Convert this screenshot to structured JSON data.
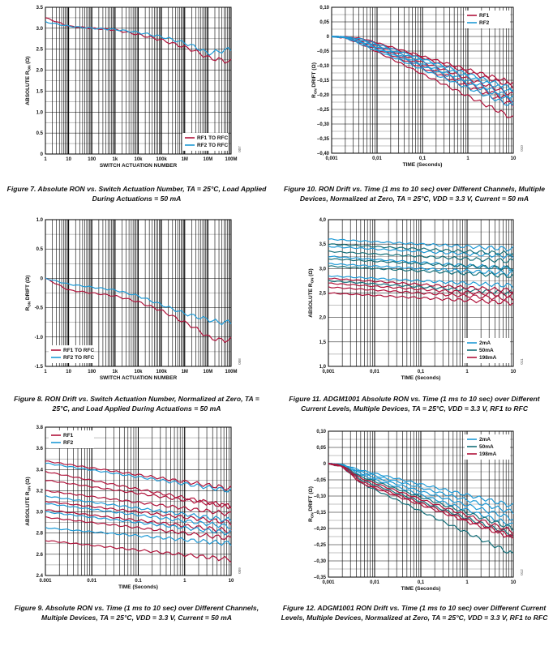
{
  "colors": {
    "red": "#b0123a",
    "blue": "#1e9ad6",
    "teal": "#14707a",
    "grid": "#000000"
  },
  "chart_data": [
    {
      "id": "fig7",
      "type": "line",
      "xscale": "log",
      "x_from": 1,
      "x_to": 100000000,
      "xticks": [
        "1",
        "10",
        "100",
        "1k",
        "10k",
        "100k",
        "1M",
        "10M",
        "100M"
      ],
      "yticks": [
        "0",
        "0.5",
        "1.0",
        "1.5",
        "2.0",
        "2.5",
        "3.0",
        "3.5"
      ],
      "ylim": [
        0,
        3.5
      ],
      "yaxis_label": "ABSOLUTE RON (Ω)",
      "xaxis_label": "SWITCH ACTUATION NUMBER",
      "figure_number": "007",
      "legend_position": "bottom-right",
      "series": [
        {
          "name": "RF1 TO RFC",
          "color": "red",
          "x": [
            1,
            10,
            100,
            1000,
            10000,
            100000,
            1000000,
            3000000,
            10000000,
            30000000,
            100000000
          ],
          "y": [
            3.25,
            3.05,
            3.0,
            2.96,
            2.85,
            2.72,
            2.55,
            2.45,
            2.3,
            2.25,
            2.2
          ]
        },
        {
          "name": "RF2 TO RFC",
          "color": "blue",
          "x": [
            1,
            10,
            100,
            1000,
            10000,
            100000,
            1000000,
            3000000,
            10000000,
            30000000,
            100000000
          ],
          "y": [
            3.15,
            3.05,
            3.0,
            2.97,
            2.9,
            2.8,
            2.65,
            2.55,
            2.4,
            2.45,
            2.5
          ]
        }
      ]
    },
    {
      "id": "fig8",
      "type": "line",
      "xscale": "log",
      "x_from": 1,
      "x_to": 100000000,
      "xticks": [
        "1",
        "10",
        "100",
        "1k",
        "10k",
        "100k",
        "1M",
        "10M",
        "100M"
      ],
      "yticks": [
        "-1.5",
        "-1.0",
        "-0.5",
        "0",
        "0.5",
        "1.0"
      ],
      "ylim": [
        -1.5,
        1.0
      ],
      "yaxis_label": "RON DRIFT (Ω)",
      "xaxis_label": "SWITCH ACTUATION NUMBER",
      "figure_number": "008",
      "legend_position": "bottom-left",
      "series": [
        {
          "name": "RF1 TO RFC",
          "color": "red",
          "x": [
            1,
            10,
            100,
            1000,
            10000,
            100000,
            1000000,
            3000000,
            10000000,
            30000000,
            100000000
          ],
          "y": [
            0,
            -0.2,
            -0.25,
            -0.3,
            -0.4,
            -0.55,
            -0.75,
            -0.85,
            -1.0,
            -1.05,
            -1.05
          ]
        },
        {
          "name": "RF2 TO RFC",
          "color": "blue",
          "x": [
            1,
            10,
            100,
            1000,
            10000,
            100000,
            1000000,
            3000000,
            10000000,
            30000000,
            100000000
          ],
          "y": [
            0,
            -0.1,
            -0.15,
            -0.2,
            -0.3,
            -0.45,
            -0.6,
            -0.65,
            -0.7,
            -0.75,
            -0.75
          ]
        }
      ]
    },
    {
      "id": "fig9",
      "type": "line",
      "xscale": "log",
      "x_from": 0.001,
      "x_to": 10,
      "xticks": [
        "0.001",
        "0.01",
        "0.1",
        "1",
        "10"
      ],
      "yticks": [
        "2.4",
        "2.6",
        "2.8",
        "3.0",
        "3.2",
        "3.4",
        "3.6",
        "3.8"
      ],
      "ylim": [
        2.4,
        3.8
      ],
      "yaxis_label": "ABSOLUTE RON (Ω)",
      "xaxis_label": "TIME (Seconds)",
      "figure_number": "009",
      "legend_position": "top-left",
      "series": [
        {
          "name": "RF1",
          "color": "red",
          "x": [
            0.001,
            10
          ],
          "y": [
            3.48,
            3.22
          ]
        },
        {
          "name": "",
          "color": "red",
          "x": [
            0.001,
            10
          ],
          "y": [
            3.38,
            3.05
          ]
        },
        {
          "name": "",
          "color": "red",
          "x": [
            0.001,
            10
          ],
          "y": [
            3.3,
            3.05
          ]
        },
        {
          "name": "",
          "color": "red",
          "x": [
            0.001,
            10
          ],
          "y": [
            3.2,
            2.98
          ]
        },
        {
          "name": "",
          "color": "red",
          "x": [
            0.001,
            10
          ],
          "y": [
            3.1,
            2.9
          ]
        },
        {
          "name": "",
          "color": "red",
          "x": [
            0.001,
            10
          ],
          "y": [
            3.02,
            2.82
          ]
        },
        {
          "name": "",
          "color": "red",
          "x": [
            0.001,
            10
          ],
          "y": [
            2.95,
            2.75
          ]
        },
        {
          "name": "",
          "color": "red",
          "x": [
            0.001,
            10
          ],
          "y": [
            2.73,
            2.55
          ]
        },
        {
          "name": "RF2",
          "color": "blue",
          "x": [
            0.001,
            10
          ],
          "y": [
            3.46,
            3.2
          ]
        },
        {
          "name": "",
          "color": "blue",
          "x": [
            0.001,
            10
          ],
          "y": [
            3.15,
            2.92
          ]
        },
        {
          "name": "",
          "color": "blue",
          "x": [
            0.001,
            10
          ],
          "y": [
            3.08,
            2.86
          ]
        },
        {
          "name": "",
          "color": "blue",
          "x": [
            0.001,
            10
          ],
          "y": [
            3.0,
            2.8
          ]
        },
        {
          "name": "",
          "color": "blue",
          "x": [
            0.001,
            10
          ],
          "y": [
            2.85,
            2.7
          ]
        }
      ]
    },
    {
      "id": "fig10",
      "type": "line",
      "xscale": "log",
      "x_from": 0.001,
      "x_to": 10,
      "xticks": [
        "0,001",
        "0,01",
        "0,1",
        "1",
        "10"
      ],
      "yticks": [
        "–0,40",
        "–0,35",
        "–0,30",
        "–0,25",
        "–0,20",
        "–0,15",
        "–0,10",
        "–0,05",
        "0",
        "0,05",
        "0,10"
      ],
      "ylim": [
        -0.4,
        0.1
      ],
      "yaxis_label": "RON DRIFT (Ω)",
      "xaxis_label": "TIME (Seconds)",
      "figure_number": "010",
      "legend_position": "top-right",
      "series": [
        {
          "name": "RF1",
          "color": "red",
          "x": [
            0.001,
            0.002,
            0.005,
            10
          ],
          "y": [
            0,
            -0.005,
            -0.03,
            -0.28
          ]
        },
        {
          "name": "",
          "color": "red",
          "x": [
            0.001,
            0.002,
            0.005,
            10
          ],
          "y": [
            0,
            -0.004,
            -0.025,
            -0.235
          ]
        },
        {
          "name": "",
          "color": "red",
          "x": [
            0.001,
            0.002,
            0.005,
            10
          ],
          "y": [
            0,
            -0.003,
            -0.02,
            -0.22
          ]
        },
        {
          "name": "",
          "color": "red",
          "x": [
            0.001,
            0.002,
            0.005,
            10
          ],
          "y": [
            0,
            -0.002,
            -0.015,
            -0.2
          ]
        },
        {
          "name": "",
          "color": "red",
          "x": [
            0.001,
            0.002,
            0.005,
            10
          ],
          "y": [
            0,
            -0.002,
            -0.01,
            -0.17
          ]
        },
        {
          "name": "",
          "color": "red",
          "x": [
            0.001,
            0.002,
            0.005,
            10
          ],
          "y": [
            0,
            -0.001,
            -0.008,
            -0.16
          ]
        },
        {
          "name": "RF2",
          "color": "blue",
          "x": [
            0.001,
            0.002,
            0.005,
            10
          ],
          "y": [
            0,
            -0.004,
            -0.03,
            -0.24
          ]
        },
        {
          "name": "",
          "color": "blue",
          "x": [
            0.001,
            0.002,
            0.005,
            10
          ],
          "y": [
            0,
            -0.003,
            -0.025,
            -0.22
          ]
        },
        {
          "name": "",
          "color": "blue",
          "x": [
            0.001,
            0.002,
            0.005,
            10
          ],
          "y": [
            0,
            -0.003,
            -0.02,
            -0.21
          ]
        },
        {
          "name": "",
          "color": "blue",
          "x": [
            0.001,
            0.002,
            0.005,
            10
          ],
          "y": [
            0,
            -0.002,
            -0.015,
            -0.19
          ]
        },
        {
          "name": "",
          "color": "blue",
          "x": [
            0.001,
            0.002,
            0.005,
            10
          ],
          "y": [
            0,
            -0.002,
            -0.01,
            -0.18
          ]
        }
      ]
    },
    {
      "id": "fig11",
      "type": "line",
      "xscale": "log",
      "x_from": 0.001,
      "x_to": 10,
      "xticks": [
        "0,001",
        "0,01",
        "0,1",
        "1",
        "10"
      ],
      "yticks": [
        "1,0",
        "1,5",
        "2,0",
        "2,5",
        "3,0",
        "3,5",
        "4,0"
      ],
      "ylim": [
        1.0,
        4.0
      ],
      "yaxis_label": "ABSOLUTE RON (Ω)",
      "xaxis_label": "TIME (Seconds)",
      "figure_number": "011",
      "legend_position": "bottom-right",
      "series": [
        {
          "name": "2mA",
          "color": "blue",
          "x": [
            0.001,
            10
          ],
          "y": [
            3.6,
            3.4
          ]
        },
        {
          "name": "",
          "color": "blue",
          "x": [
            0.001,
            10
          ],
          "y": [
            3.45,
            3.25
          ]
        },
        {
          "name": "",
          "color": "blue",
          "x": [
            0.001,
            10
          ],
          "y": [
            3.25,
            3.0
          ]
        },
        {
          "name": "",
          "color": "blue",
          "x": [
            0.001,
            10
          ],
          "y": [
            3.1,
            2.9
          ]
        },
        {
          "name": "",
          "color": "blue",
          "x": [
            0.001,
            10
          ],
          "y": [
            2.85,
            2.65
          ]
        },
        {
          "name": "50mA",
          "color": "teal",
          "x": [
            0.001,
            10
          ],
          "y": [
            3.5,
            3.3
          ]
        },
        {
          "name": "",
          "color": "teal",
          "x": [
            0.001,
            10
          ],
          "y": [
            3.35,
            3.15
          ]
        },
        {
          "name": "",
          "color": "teal",
          "x": [
            0.001,
            10
          ],
          "y": [
            3.2,
            3.0
          ]
        },
        {
          "name": "",
          "color": "teal",
          "x": [
            0.001,
            10
          ],
          "y": [
            3.05,
            2.85
          ]
        },
        {
          "name": "",
          "color": "teal",
          "x": [
            0.001,
            10
          ],
          "y": [
            2.75,
            2.5
          ]
        },
        {
          "name": "198mA",
          "color": "red",
          "x": [
            0.001,
            10
          ],
          "y": [
            2.8,
            2.55
          ]
        },
        {
          "name": "",
          "color": "red",
          "x": [
            0.001,
            10
          ],
          "y": [
            2.7,
            2.45
          ]
        },
        {
          "name": "",
          "color": "red",
          "x": [
            0.001,
            10
          ],
          "y": [
            2.62,
            2.38
          ]
        },
        {
          "name": "",
          "color": "red",
          "x": [
            0.001,
            10
          ],
          "y": [
            2.5,
            2.3
          ]
        }
      ]
    },
    {
      "id": "fig12",
      "type": "line",
      "xscale": "log",
      "x_from": 0.001,
      "x_to": 10,
      "xticks": [
        "0,001",
        "0,01",
        "0,1",
        "1",
        "10"
      ],
      "yticks": [
        "–0,35",
        "–0,30",
        "–0,25",
        "–0,20",
        "–0,15",
        "–0,10",
        "–0,05",
        "0",
        "0,05",
        "0,10"
      ],
      "ylim": [
        -0.35,
        0.1
      ],
      "yaxis_label": "RON DRIFT (Ω)",
      "xaxis_label": "TIME (Seconds)",
      "figure_number": "012",
      "legend_position": "top-right",
      "series": [
        {
          "name": "2mA",
          "color": "blue",
          "x": [
            0.001,
            0.002,
            0.005,
            10
          ],
          "y": [
            0,
            -0.003,
            -0.02,
            -0.13
          ]
        },
        {
          "name": "",
          "color": "blue",
          "x": [
            0.001,
            0.002,
            0.005,
            10
          ],
          "y": [
            0,
            -0.003,
            -0.025,
            -0.15
          ]
        },
        {
          "name": "",
          "color": "blue",
          "x": [
            0.001,
            0.002,
            0.005,
            10
          ],
          "y": [
            0,
            -0.004,
            -0.03,
            -0.17
          ]
        },
        {
          "name": "",
          "color": "blue",
          "x": [
            0.001,
            0.002,
            0.005,
            10
          ],
          "y": [
            0,
            -0.005,
            -0.035,
            -0.19
          ]
        },
        {
          "name": "50mA",
          "color": "teal",
          "x": [
            0.001,
            0.002,
            0.005,
            10
          ],
          "y": [
            0,
            -0.005,
            -0.04,
            -0.2
          ]
        },
        {
          "name": "",
          "color": "teal",
          "x": [
            0.001,
            0.002,
            0.005,
            10
          ],
          "y": [
            0,
            -0.006,
            -0.05,
            -0.22
          ]
        },
        {
          "name": "",
          "color": "teal",
          "x": [
            0.001,
            0.002,
            0.005,
            10
          ],
          "y": [
            0,
            -0.01,
            -0.06,
            -0.28
          ]
        },
        {
          "name": "198mA",
          "color": "red",
          "x": [
            0.001,
            0.002,
            0.005,
            10
          ],
          "y": [
            0,
            -0.006,
            -0.045,
            -0.21
          ]
        },
        {
          "name": "",
          "color": "red",
          "x": [
            0.001,
            0.002,
            0.005,
            10
          ],
          "y": [
            0,
            -0.008,
            -0.055,
            -0.225
          ]
        },
        {
          "name": "",
          "color": "red",
          "x": [
            0.001,
            0.002,
            0.005,
            10
          ],
          "y": [
            0,
            -0.009,
            -0.06,
            -0.23
          ]
        }
      ]
    }
  ],
  "captions": {
    "fig7": "Figure 7. Absolute RON vs. Switch Actuation Number, TA = 25°C, Load Applied During Actuations = 50 mA",
    "fig8": "Figure 8. RON Drift vs. Switch Actuation Number, Normalized at Zero, TA = 25°C, and Load Applied During Actuations = 50 mA",
    "fig9": "Figure 9. Absolute RON vs. Time (1 ms to 10 sec) over Different Channels, Multiple Devices, TA = 25°C, VDD = 3.3 V, Current = 50 mA",
    "fig10": "Figure 10. RON Drift vs. Time (1 ms to 10 sec) over Different Channels, Multiple Devices, Normalized at Zero, TA = 25°C, VDD = 3.3 V, Current = 50 mA",
    "fig11": "Figure 11. ADGM1001 Absolute RON vs. Time (1 ms to 10 sec) over Different Current Levels, Multiple Devices, TA = 25°C, VDD = 3.3 V, RF1 to RFC",
    "fig12": "Figure 12. ADGM1001 RON Drift vs. Time (1 ms to 10 sec) over Different Current Levels, Multiple Devices, Normalized at Zero, TA = 25°C, VDD = 3.3 V, RF1 to RFC"
  }
}
